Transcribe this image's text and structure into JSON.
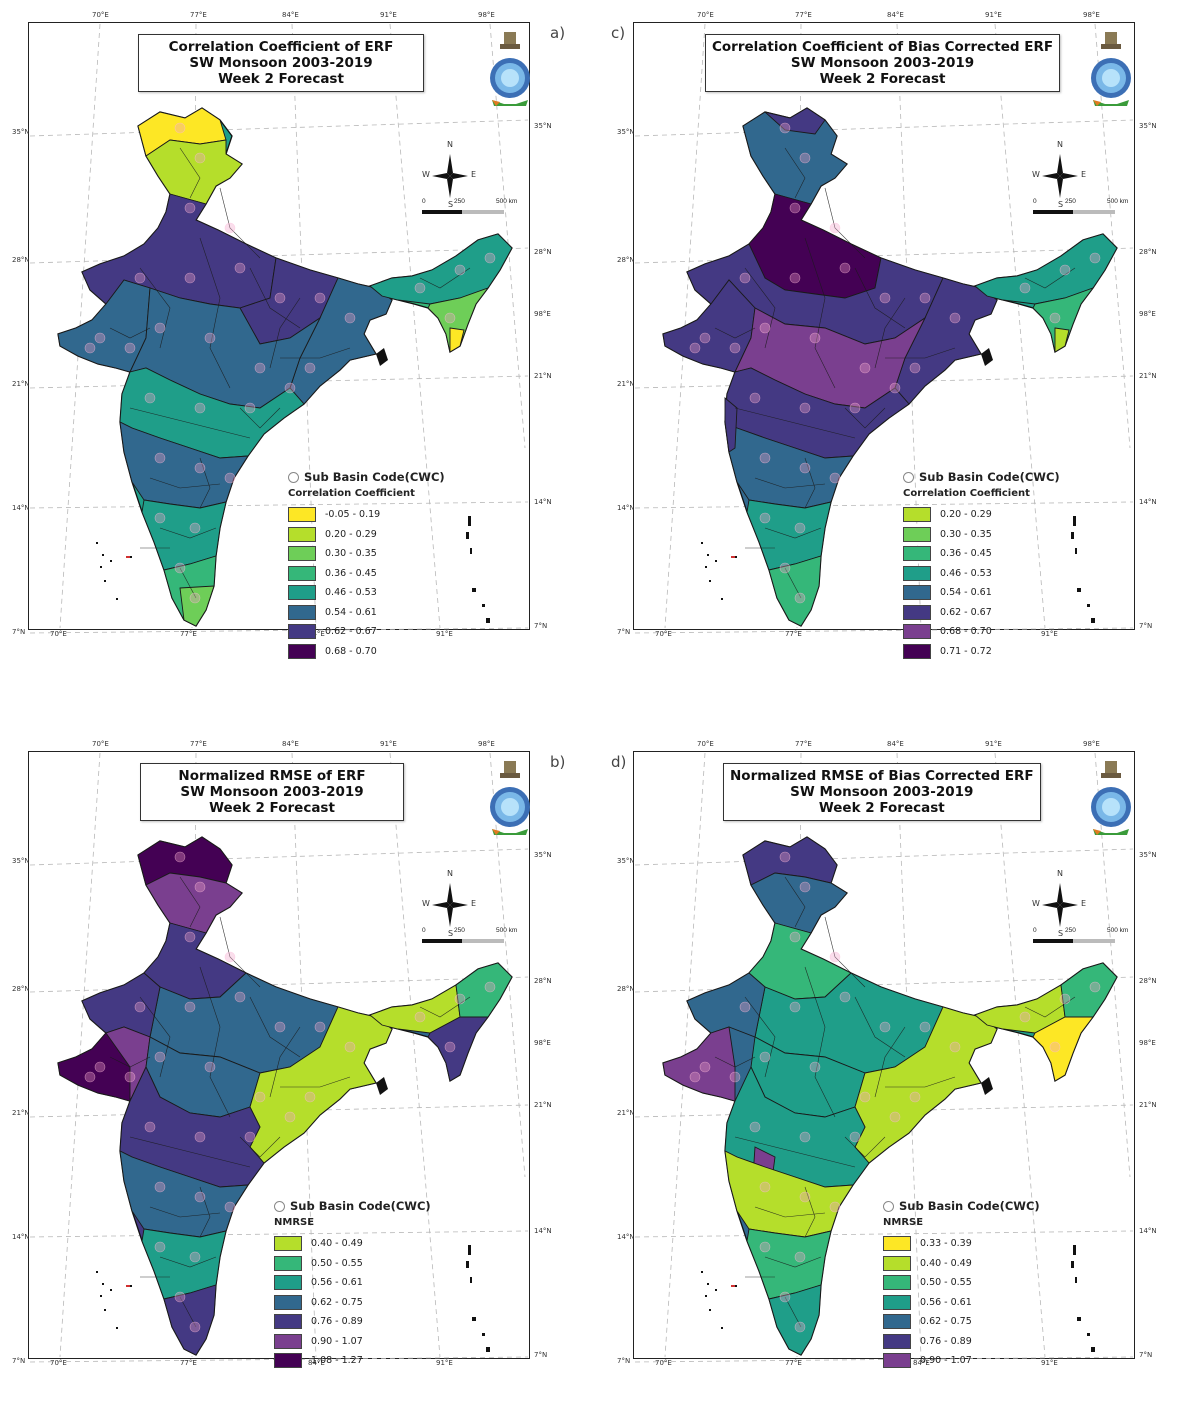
{
  "panels": [
    {
      "id": "a",
      "label": "a)",
      "title": [
        "Correlation Coefficient of ERF",
        "SW Monsoon 2003-2019",
        "Week 2 Forecast"
      ],
      "legend_sub": "Sub Basin Code(CWC)",
      "legend_title": "Correlation Coefficient",
      "legend": [
        {
          "label": "-0.05 - 0.19",
          "color": "#fde725"
        },
        {
          "label": "0.20 - 0.29",
          "color": "#b5de2b"
        },
        {
          "label": "0.30 - 0.35",
          "color": "#6ece58"
        },
        {
          "label": "0.36 - 0.45",
          "color": "#35b779"
        },
        {
          "label": "0.46 - 0.53",
          "color": "#1f9e89"
        },
        {
          "label": "0.54 - 0.61",
          "color": "#31688e"
        },
        {
          "label": "0.62 - 0.67",
          "color": "#443983"
        },
        {
          "label": "0.68 - 0.70",
          "color": "#440154"
        }
      ]
    },
    {
      "id": "c",
      "label": "c)",
      "title": [
        "Correlation Coefficient of Bias Corrected ERF",
        "SW Monsoon 2003-2019",
        "Week 2 Forecast"
      ],
      "legend_sub": "Sub Basin Code(CWC)",
      "legend_title": "Correlation Coefficient",
      "legend": [
        {
          "label": "0.20 - 0.29",
          "color": "#b5de2b"
        },
        {
          "label": "0.30 - 0.35",
          "color": "#6ece58"
        },
        {
          "label": "0.36 - 0.45",
          "color": "#35b779"
        },
        {
          "label": "0.46 - 0.53",
          "color": "#1f9e89"
        },
        {
          "label": "0.54 - 0.61",
          "color": "#31688e"
        },
        {
          "label": "0.62 - 0.67",
          "color": "#443983"
        },
        {
          "label": "0.68 - 0.70",
          "color": "#7a3f8f"
        },
        {
          "label": "0.71 - 0.72",
          "color": "#440154"
        }
      ]
    },
    {
      "id": "b",
      "label": "b)",
      "title": [
        "Normalized RMSE of ERF",
        "SW Monsoon 2003-2019",
        "Week 2 Forecast"
      ],
      "legend_sub": "Sub Basin Code(CWC)",
      "legend_title": "NMRSE",
      "legend": [
        {
          "label": "0.40 - 0.49",
          "color": "#b5de2b"
        },
        {
          "label": "0.50 - 0.55",
          "color": "#35b779"
        },
        {
          "label": "0.56 - 0.61",
          "color": "#1f9e89"
        },
        {
          "label": "0.62 - 0.75",
          "color": "#31688e"
        },
        {
          "label": "0.76 - 0.89",
          "color": "#443983"
        },
        {
          "label": "0.90 - 1.07",
          "color": "#7a3f8f"
        },
        {
          "label": "1.08 - 1.27",
          "color": "#440154"
        }
      ]
    },
    {
      "id": "d",
      "label": "d)",
      "title": [
        "Normalized RMSE of Bias Corrected ERF",
        "SW Monsoon 2003-2019",
        "Week 2 Forecast"
      ],
      "legend_sub": "Sub Basin Code(CWC)",
      "legend_title": "NMRSE",
      "legend": [
        {
          "label": "0.33 - 0.39",
          "color": "#fde725"
        },
        {
          "label": "0.40 - 0.49",
          "color": "#b5de2b"
        },
        {
          "label": "0.50 - 0.55",
          "color": "#35b779"
        },
        {
          "label": "0.56 - 0.61",
          "color": "#1f9e89"
        },
        {
          "label": "0.62 - 0.75",
          "color": "#31688e"
        },
        {
          "label": "0.76 - 0.89",
          "color": "#443983"
        },
        {
          "label": "0.90 - 1.07",
          "color": "#7a3f8f"
        }
      ]
    }
  ],
  "axes": {
    "lon_top": [
      "70°E",
      "77°E",
      "84°E",
      "91°E",
      "98°E"
    ],
    "lon_bottom": [
      "70°E",
      "77°E",
      "84°E",
      "91°E"
    ],
    "lat_left": [
      "35°N",
      "28°N",
      "21°N",
      "14°N",
      "7°N"
    ],
    "lat_right": [
      "35°N",
      "28°N",
      "98°E",
      "21°N",
      "14°N",
      "7°N"
    ]
  },
  "compass": {
    "n": "N",
    "s": "S",
    "e": "E",
    "w": "W"
  },
  "scalebar": {
    "zero": "0",
    "mid": "250",
    "end": "500 km"
  }
}
